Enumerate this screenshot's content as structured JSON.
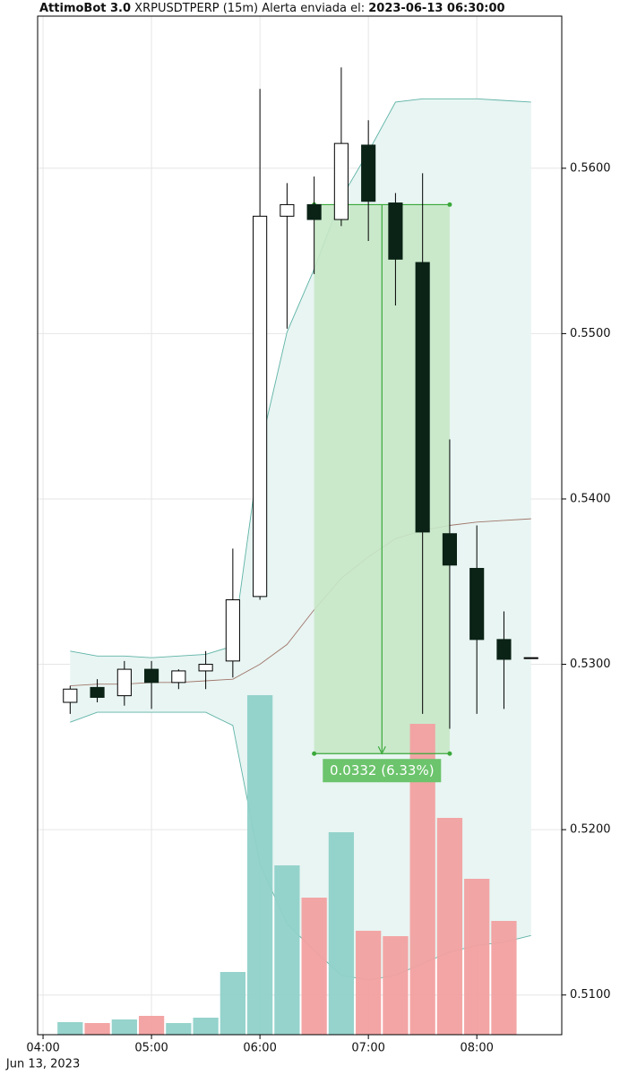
{
  "chart_data": {
    "type": "candlestick",
    "title_parts": [
      "AttimoBot 3.0",
      " XRPUSDTPERP (15m) Alerta enviada el: ",
      "2023-06-13 06:30:00"
    ],
    "x": [
      "04:15",
      "04:30",
      "04:45",
      "05:00",
      "05:15",
      "05:30",
      "05:45",
      "06:00",
      "06:15",
      "06:30",
      "06:45",
      "07:00",
      "07:15",
      "07:30",
      "07:45",
      "08:00",
      "08:15",
      "08:30"
    ],
    "open": [
      0.5277,
      0.5286,
      0.5281,
      0.5297,
      0.5289,
      0.5296,
      0.5302,
      0.5341,
      0.5571,
      0.5578,
      0.5569,
      0.5614,
      0.5579,
      0.5543,
      0.5379,
      0.5358,
      0.5315,
      0.5304
    ],
    "high": [
      0.5287,
      0.5291,
      0.5302,
      0.5302,
      0.5297,
      0.5308,
      0.537,
      0.5648,
      0.5591,
      0.5595,
      0.5661,
      0.5629,
      0.5585,
      0.5597,
      0.5436,
      0.5384,
      0.5332,
      0.5304
    ],
    "low": [
      0.527,
      0.5277,
      0.5275,
      0.5273,
      0.5285,
      0.5285,
      0.5292,
      0.5339,
      0.5503,
      0.5536,
      0.5565,
      0.5556,
      0.5517,
      0.527,
      0.5261,
      0.527,
      0.5273,
      0.5304
    ],
    "close": [
      0.5285,
      0.528,
      0.5297,
      0.5289,
      0.5296,
      0.53,
      0.5339,
      0.5571,
      0.5578,
      0.5569,
      0.5615,
      0.558,
      0.5545,
      0.538,
      0.536,
      0.5315,
      0.5303,
      0.5304
    ],
    "volume": [
      14,
      13,
      17,
      21,
      13,
      19,
      70,
      379,
      189,
      153,
      226,
      116,
      110,
      347,
      242,
      174,
      127,
      null
    ],
    "volume_lim": [
      0,
      1137
    ],
    "bands": {
      "upper": [
        0.5308,
        0.5305,
        0.5305,
        0.5304,
        0.5305,
        0.5306,
        0.5311,
        0.543,
        0.5501,
        0.5539,
        0.5582,
        0.561,
        0.564,
        0.5642,
        0.5642,
        0.5642,
        0.5641,
        0.564
      ],
      "middle": [
        0.5287,
        0.5288,
        0.5288,
        0.5289,
        0.5289,
        0.529,
        0.5291,
        0.53,
        0.5312,
        0.5333,
        0.5352,
        0.5365,
        0.5376,
        0.5381,
        0.5384,
        0.5386,
        0.5387,
        0.5388
      ],
      "lower": [
        0.5265,
        0.5271,
        0.5271,
        0.5271,
        0.5271,
        0.5271,
        0.5263,
        0.5179,
        0.5143,
        0.5127,
        0.5112,
        0.5109,
        0.5112,
        0.5119,
        0.5126,
        0.513,
        0.5132,
        0.5136
      ]
    },
    "measure": {
      "from": 0.5578,
      "to": 0.5246,
      "x_start": "06:30",
      "x_end": "07:45",
      "label": "0.0332 (6.33%)"
    },
    "xlim": [
      "03:57",
      "08:47"
    ],
    "xticks": [
      "04:00",
      "05:00",
      "06:00",
      "07:00",
      "08:00"
    ],
    "x_date_label": "Jun 13, 2023",
    "ylim": [
      0.5076,
      0.5692
    ],
    "yticks": [
      {
        "value": 0.51,
        "label": "0.5100"
      },
      {
        "value": 0.52,
        "label": "0.5200"
      },
      {
        "value": 0.53,
        "label": "0.5300"
      },
      {
        "value": 0.54,
        "label": "0.5400"
      },
      {
        "value": 0.55,
        "label": "0.5500"
      },
      {
        "value": 0.56,
        "label": "0.5600"
      }
    ],
    "grid": true,
    "colors": {
      "up": "#ffffff",
      "down": "#0b2216",
      "outline": "#000000",
      "volume_up": "#8fd1c9",
      "volume_down": "#f2a0a0",
      "band_fill": "#e8f5f2",
      "band_line": "#5fb3a7",
      "middle_line": "#a0766c",
      "measure": "#3aa83a",
      "measure_fill": "#c6e8c6",
      "measure_label": "#6cc46c"
    }
  }
}
